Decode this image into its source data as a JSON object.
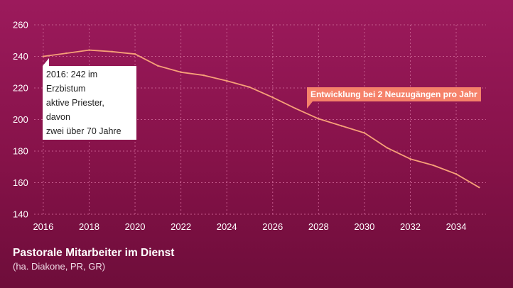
{
  "chart_data": {
    "type": "line",
    "title": "Pastorale Mitarbeiter im Dienst",
    "subtitle": "(ha. Diakone, PR, GR)",
    "x": [
      2016,
      2017,
      2018,
      2019,
      2020,
      2021,
      2022,
      2023,
      2024,
      2025,
      2026,
      2027,
      2028,
      2029,
      2030,
      2031,
      2032,
      2033,
      2034,
      2035
    ],
    "series": [
      {
        "values": [
          240,
          242,
          244,
          243,
          241.5,
          234,
          230,
          228,
          224.5,
          220.5,
          214,
          207,
          200.5,
          196,
          191.5,
          182,
          175,
          171,
          165.5,
          157
        ]
      }
    ],
    "xticks": [
      2016,
      2018,
      2020,
      2022,
      2024,
      2026,
      2028,
      2030,
      2032,
      2034
    ],
    "yticks": [
      140,
      160,
      180,
      200,
      220,
      240,
      260
    ],
    "xlim": [
      2015.6,
      2035.3
    ],
    "ylim": [
      140,
      260
    ],
    "grid": {
      "x": true,
      "y": true,
      "style": "dashed"
    },
    "annotations": [
      {
        "lines": [
          "2016: 242 im Erzbistum",
          "aktive Priester, davon",
          "zwei über 70 Jahre"
        ],
        "x": 2016,
        "y": 240
      },
      {
        "text": "Entwicklung bei 2 Neuzugängen pro Jahr",
        "x": 2027.4,
        "y": 207
      }
    ],
    "colors": {
      "line": "#f7a078",
      "background": "#8e1652",
      "grid": "#c45a8c",
      "label_bg": "#f5826a"
    }
  }
}
